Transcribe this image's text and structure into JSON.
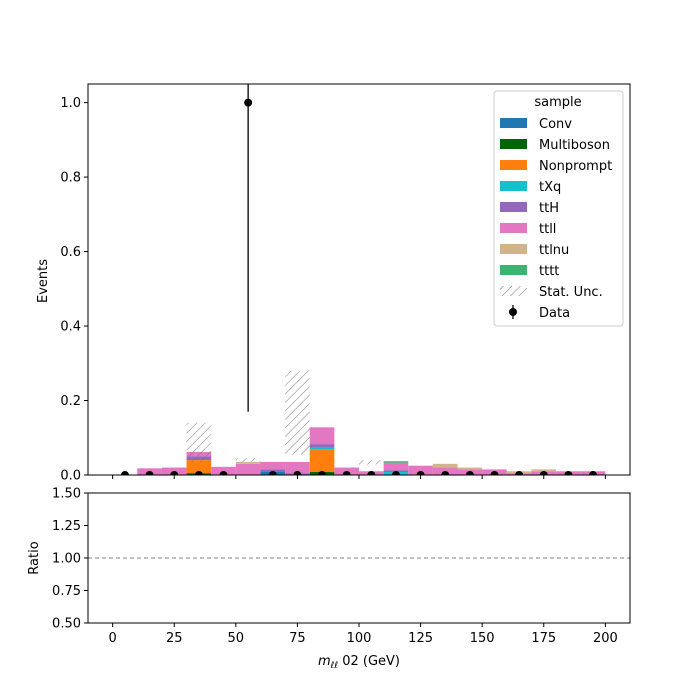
{
  "colors": {
    "Conv": "#1f77b4",
    "Multiboson": "#006400",
    "Nonprompt": "#ff7f0e",
    "tXq": "#17becf",
    "ttH": "#9467bd",
    "ttll": "#e377c2",
    "ttlnu": "#d2b48c",
    "tttt": "#3cb371",
    "data": "#000000",
    "hatch": "#777777",
    "ratio_line": "#808080"
  },
  "chart_data": [
    {
      "type": "bar",
      "stacked": true,
      "ylabel": "Events",
      "ylim": [
        0,
        1.05
      ],
      "xlim": [
        -10,
        210
      ],
      "yticks": [
        "0.0",
        "0.2",
        "0.4",
        "0.6",
        "0.8",
        "1.0"
      ],
      "ytick_values": [
        0,
        0.2,
        0.4,
        0.6,
        0.8,
        1.0
      ],
      "bin_edges": [
        0,
        10,
        20,
        30,
        40,
        50,
        60,
        70,
        80,
        90,
        100,
        110,
        120,
        130,
        140,
        150,
        160,
        170,
        180,
        190,
        200
      ],
      "series": [
        {
          "name": "Conv",
          "values": [
            0,
            0,
            0,
            0,
            0,
            0,
            0.01,
            0,
            0,
            0,
            0,
            0,
            0,
            0,
            0,
            0,
            0,
            0,
            0,
            0
          ]
        },
        {
          "name": "Multiboson",
          "values": [
            0,
            0,
            0,
            0.005,
            0,
            0,
            0,
            0,
            0.008,
            0,
            0,
            0,
            0,
            0,
            0,
            0,
            0,
            0,
            0,
            0
          ]
        },
        {
          "name": "Nonprompt",
          "values": [
            0,
            0,
            0,
            0.035,
            0,
            0,
            0,
            0,
            0.06,
            0,
            0,
            0,
            0,
            0,
            0,
            0,
            0,
            0,
            0,
            0
          ]
        },
        {
          "name": "tXq",
          "values": [
            0,
            0,
            0,
            0,
            0,
            0,
            0,
            0,
            0.005,
            0,
            0,
            0.008,
            0,
            0,
            0,
            0,
            0,
            0,
            0,
            0
          ]
        },
        {
          "name": "ttH",
          "values": [
            0,
            0,
            0,
            0.01,
            0,
            0,
            0.005,
            0.005,
            0.01,
            0,
            0,
            0.005,
            0,
            0,
            0,
            0,
            0,
            0,
            0,
            0
          ]
        },
        {
          "name": "ttll",
          "values": [
            0,
            0.018,
            0.02,
            0.012,
            0.022,
            0.03,
            0.02,
            0.03,
            0.045,
            0.02,
            0.01,
            0.02,
            0.025,
            0.02,
            0.015,
            0.015,
            0.005,
            0.01,
            0.01,
            0.01
          ]
        },
        {
          "name": "ttlnu",
          "values": [
            0,
            0,
            0,
            0,
            0,
            0.005,
            0,
            0,
            0,
            0,
            0,
            0,
            0,
            0.01,
            0.005,
            0,
            0.005,
            0.005,
            0,
            0
          ]
        },
        {
          "name": "tttt",
          "values": [
            0,
            0,
            0,
            0,
            0,
            0,
            0,
            0,
            0,
            0,
            0,
            0.004,
            0,
            0,
            0,
            0,
            0,
            0,
            0,
            0
          ]
        }
      ],
      "stat_unc": [
        {
          "lo": 0.035,
          "hi": 0.14
        },
        {
          "lo": 0.035,
          "hi": 0.045
        },
        {
          "lo": 0.055,
          "hi": 0.28
        },
        {
          "lo": 0.028,
          "hi": 0.04
        }
      ],
      "data_points": {
        "x": [
          5,
          15,
          25,
          35,
          45,
          55,
          65,
          75,
          85,
          95,
          105,
          115,
          125,
          135,
          145,
          155,
          165,
          175,
          185,
          195
        ],
        "y": [
          0,
          0,
          0,
          0,
          0,
          1,
          0,
          0,
          0,
          0,
          0,
          0,
          0,
          0,
          0,
          0,
          0,
          0,
          0,
          0
        ],
        "yerr_low": [
          0,
          0,
          0,
          0,
          0,
          0.83,
          0,
          0,
          0,
          0,
          0,
          0,
          0,
          0,
          0,
          0,
          0,
          0,
          0,
          0
        ],
        "yerr_high": [
          0,
          0,
          0,
          0,
          0,
          2.3,
          0,
          0,
          0,
          0,
          0,
          0,
          0,
          0,
          0,
          0,
          0,
          0,
          0,
          0
        ]
      },
      "legend": {
        "title": "sample",
        "placement": "upper right",
        "entries": [
          "Conv",
          "Multiboson",
          "Nonprompt",
          "tXq",
          "ttH",
          "ttll",
          "ttlnu",
          "tttt",
          "Stat. Unc.",
          "Data"
        ]
      }
    },
    {
      "type": "line",
      "ylabel": "Ratio",
      "xlabel_main": "m",
      "xlabel_sub": "ℓℓ",
      "xlabel_tail": " 02 (GeV)",
      "ylim": [
        0.5,
        1.5
      ],
      "xlim": [
        -10,
        210
      ],
      "yticks": [
        "0.50",
        "0.75",
        "1.00",
        "1.25",
        "1.50"
      ],
      "ytick_values": [
        0.5,
        0.75,
        1.0,
        1.25,
        1.5
      ],
      "xticks": [
        "0",
        "25",
        "50",
        "75",
        "100",
        "125",
        "150",
        "175",
        "200"
      ],
      "xtick_values": [
        0,
        25,
        50,
        75,
        100,
        125,
        150,
        175,
        200
      ],
      "reference_line": 1.0
    }
  ]
}
